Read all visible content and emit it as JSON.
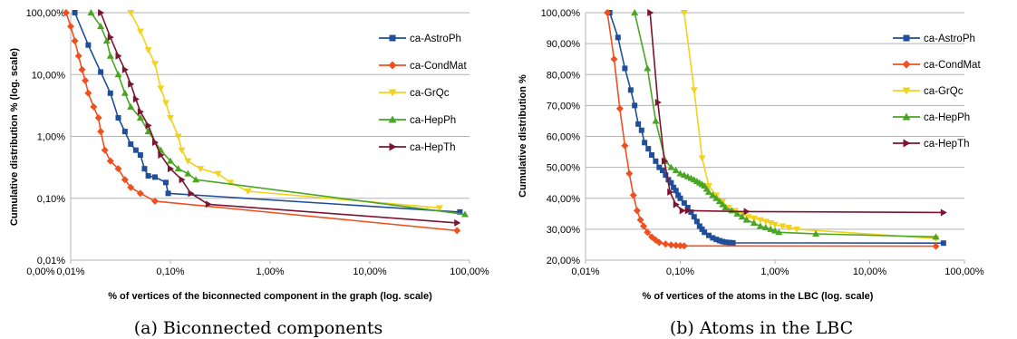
{
  "chart_data": [
    {
      "type": "line",
      "caption": "(a) Biconnected components",
      "xlabel": "% of vertices of the biconnected component in the graph (log. scale)",
      "ylabel": "Cumulative distribution % (log. scale)",
      "x_scale": "log",
      "y_scale": "log",
      "xlim": [
        0.0001,
        1
      ],
      "ylim": [
        0.0001,
        1
      ],
      "x_ticks": [
        0.0001,
        0.001,
        0.01,
        0.1,
        1
      ],
      "x_tick_labels": [
        "0,00%",
        "0,01%",
        "0,10%",
        "1,00%",
        "10,00%",
        "100,00%"
      ],
      "x_tick_label_values": [
        5e-05,
        0.0001,
        0.001,
        0.01,
        0.1,
        1
      ],
      "y_ticks": [
        0.0001,
        0.001,
        0.01,
        0.1,
        1
      ],
      "y_tick_labels": [
        "0,01%",
        "0,10%",
        "1,00%",
        "10,00%",
        "100,00%"
      ],
      "grid": "horizontal",
      "legend": "right",
      "series": [
        {
          "name": "ca-AstroPh",
          "color": "#1f4e9a",
          "marker": "square",
          "x": [
            0.00011,
            0.00015,
            0.0002,
            0.00025,
            0.0003,
            0.00035,
            0.0004,
            0.00045,
            0.0005,
            0.00055,
            0.0006,
            0.0007,
            0.0009,
            0.00095,
            0.8
          ],
          "y": [
            1.0,
            0.3,
            0.11,
            0.05,
            0.02,
            0.012,
            0.0075,
            0.006,
            0.005,
            0.003,
            0.0023,
            0.0022,
            0.0018,
            0.0012,
            0.0006
          ]
        },
        {
          "name": "ca-CondMat",
          "color": "#f0501e",
          "marker": "diamond",
          "x": [
            9e-05,
            0.0001,
            0.00011,
            0.00012,
            0.00013,
            0.00014,
            0.00015,
            0.00017,
            0.00019,
            0.0002,
            0.00022,
            0.00025,
            0.0003,
            0.00035,
            0.0004,
            0.0005,
            0.0007,
            0.75
          ],
          "y": [
            1.0,
            0.6,
            0.35,
            0.2,
            0.12,
            0.08,
            0.05,
            0.03,
            0.02,
            0.012,
            0.006,
            0.004,
            0.003,
            0.002,
            0.0015,
            0.0012,
            0.0009,
            0.0003
          ]
        },
        {
          "name": "ca-GrQc",
          "color": "#f2d21c",
          "marker": "triangle-down",
          "x": [
            0.0004,
            0.0005,
            0.0006,
            0.0007,
            0.0008,
            0.0009,
            0.001,
            0.0012,
            0.0013,
            0.0015,
            0.002,
            0.003,
            0.004,
            0.006,
            0.5
          ],
          "y": [
            1.0,
            0.5,
            0.25,
            0.15,
            0.06,
            0.035,
            0.02,
            0.01,
            0.006,
            0.004,
            0.003,
            0.0025,
            0.0018,
            0.0013,
            0.0007
          ]
        },
        {
          "name": "ca-HepPh",
          "color": "#4aa524",
          "marker": "triangle-up",
          "x": [
            0.00016,
            0.0002,
            0.00023,
            0.00025,
            0.0003,
            0.00035,
            0.0004,
            0.0005,
            0.0006,
            0.0008,
            0.001,
            0.0012,
            0.0015,
            0.0018,
            0.9
          ],
          "y": [
            1.0,
            0.6,
            0.35,
            0.2,
            0.1,
            0.05,
            0.03,
            0.02,
            0.012,
            0.006,
            0.004,
            0.003,
            0.0025,
            0.002,
            0.00055
          ]
        },
        {
          "name": "ca-HepTh",
          "color": "#7b1530",
          "marker": "triangle-right",
          "x": [
            0.0002,
            0.00025,
            0.0003,
            0.00035,
            0.0004,
            0.00045,
            0.0005,
            0.0006,
            0.0007,
            0.0008,
            0.001,
            0.0013,
            0.0016,
            0.0024,
            0.75
          ],
          "y": [
            1.0,
            0.4,
            0.2,
            0.12,
            0.07,
            0.04,
            0.025,
            0.015,
            0.008,
            0.005,
            0.003,
            0.002,
            0.0012,
            0.0008,
            0.0004
          ]
        }
      ]
    },
    {
      "type": "line",
      "caption": "(b) Atoms in the LBC",
      "xlabel": "% of vertices of the atoms in the LBC (log. scale)",
      "ylabel": "Cumulative distribution %",
      "x_scale": "log",
      "y_scale": "linear",
      "xlim": [
        0.0001,
        1
      ],
      "ylim": [
        0.2,
        1.0
      ],
      "x_ticks": [
        0.0001,
        0.001,
        0.01,
        0.1,
        1
      ],
      "x_tick_labels": [
        "0,01%",
        "0,10%",
        "1,00%",
        "10,00%",
        "100,00%"
      ],
      "y_ticks": [
        0.2,
        0.3,
        0.4,
        0.5,
        0.6,
        0.7,
        0.8,
        0.9,
        1.0
      ],
      "y_tick_labels": [
        "20,00%",
        "30,00%",
        "40,00%",
        "50,00%",
        "60,00%",
        "70,00%",
        "80,00%",
        "90,00%",
        "100,00%"
      ],
      "grid": "horizontal",
      "legend": "right",
      "series": [
        {
          "name": "ca-AstroPh",
          "color": "#1f4e9a",
          "marker": "square",
          "x": [
            0.00018,
            0.00022,
            0.00026,
            0.0003,
            0.00033,
            0.00036,
            0.00039,
            0.00042,
            0.00046,
            0.0005,
            0.00055,
            0.0006,
            0.00065,
            0.0007,
            0.00075,
            0.0008,
            0.00085,
            0.0009,
            0.00095,
            0.001,
            0.0011,
            0.0012,
            0.0013,
            0.0014,
            0.0015,
            0.0016,
            0.0017,
            0.0018,
            0.002,
            0.0022,
            0.0024,
            0.0026,
            0.0028,
            0.003,
            0.0033,
            0.0036,
            0.6
          ],
          "y": [
            1.0,
            0.92,
            0.82,
            0.75,
            0.7,
            0.64,
            0.62,
            0.58,
            0.56,
            0.54,
            0.52,
            0.5,
            0.49,
            0.475,
            0.46,
            0.45,
            0.435,
            0.425,
            0.41,
            0.4,
            0.385,
            0.37,
            0.355,
            0.34,
            0.325,
            0.31,
            0.3,
            0.29,
            0.28,
            0.272,
            0.267,
            0.263,
            0.26,
            0.258,
            0.257,
            0.256,
            0.255
          ]
        },
        {
          "name": "ca-CondMat",
          "color": "#f0501e",
          "marker": "diamond",
          "x": [
            0.00017,
            0.0002,
            0.00023,
            0.00026,
            0.00029,
            0.00032,
            0.00035,
            0.00038,
            0.00041,
            0.00045,
            0.0005,
            0.00055,
            0.0006,
            0.0007,
            0.0008,
            0.0009,
            0.001,
            0.0011,
            0.5
          ],
          "y": [
            1.0,
            0.85,
            0.69,
            0.57,
            0.48,
            0.41,
            0.36,
            0.33,
            0.31,
            0.29,
            0.275,
            0.265,
            0.257,
            0.252,
            0.249,
            0.248,
            0.247,
            0.246,
            0.245
          ]
        },
        {
          "name": "ca-GrQc",
          "color": "#f2d21c",
          "marker": "triangle-down",
          "x": [
            0.0011,
            0.0014,
            0.0017,
            0.002,
            0.0024,
            0.0028,
            0.0032,
            0.0038,
            0.0045,
            0.0052,
            0.006,
            0.007,
            0.008,
            0.009,
            0.01,
            0.012,
            0.014,
            0.017,
            0.5
          ],
          "y": [
            1.0,
            0.75,
            0.53,
            0.44,
            0.41,
            0.39,
            0.37,
            0.36,
            0.35,
            0.34,
            0.335,
            0.33,
            0.325,
            0.32,
            0.315,
            0.31,
            0.305,
            0.3,
            0.27
          ]
        },
        {
          "name": "ca-HepPh",
          "color": "#4aa524",
          "marker": "triangle-up",
          "x": [
            0.00033,
            0.00045,
            0.00055,
            0.0007,
            0.0008,
            0.0009,
            0.001,
            0.0011,
            0.0012,
            0.0013,
            0.0014,
            0.0015,
            0.0016,
            0.0017,
            0.0018,
            0.0019,
            0.002,
            0.0022,
            0.0024,
            0.0026,
            0.0028,
            0.003,
            0.0035,
            0.004,
            0.0045,
            0.005,
            0.006,
            0.007,
            0.008,
            0.009,
            0.01,
            0.011,
            0.027,
            0.5
          ],
          "y": [
            1.0,
            0.82,
            0.65,
            0.52,
            0.5,
            0.49,
            0.48,
            0.475,
            0.47,
            0.465,
            0.46,
            0.455,
            0.45,
            0.445,
            0.44,
            0.43,
            0.42,
            0.41,
            0.4,
            0.39,
            0.38,
            0.37,
            0.36,
            0.35,
            0.34,
            0.33,
            0.32,
            0.31,
            0.305,
            0.3,
            0.295,
            0.29,
            0.285,
            0.275
          ]
        },
        {
          "name": "ca-HepTh",
          "color": "#7b1530",
          "marker": "triangle-right",
          "x": [
            0.00048,
            0.00058,
            0.00068,
            0.00078,
            0.0009,
            0.00105,
            0.0012,
            0.005,
            0.6
          ],
          "y": [
            1.0,
            0.71,
            0.52,
            0.42,
            0.38,
            0.36,
            0.36,
            0.357,
            0.354
          ]
        }
      ]
    }
  ]
}
